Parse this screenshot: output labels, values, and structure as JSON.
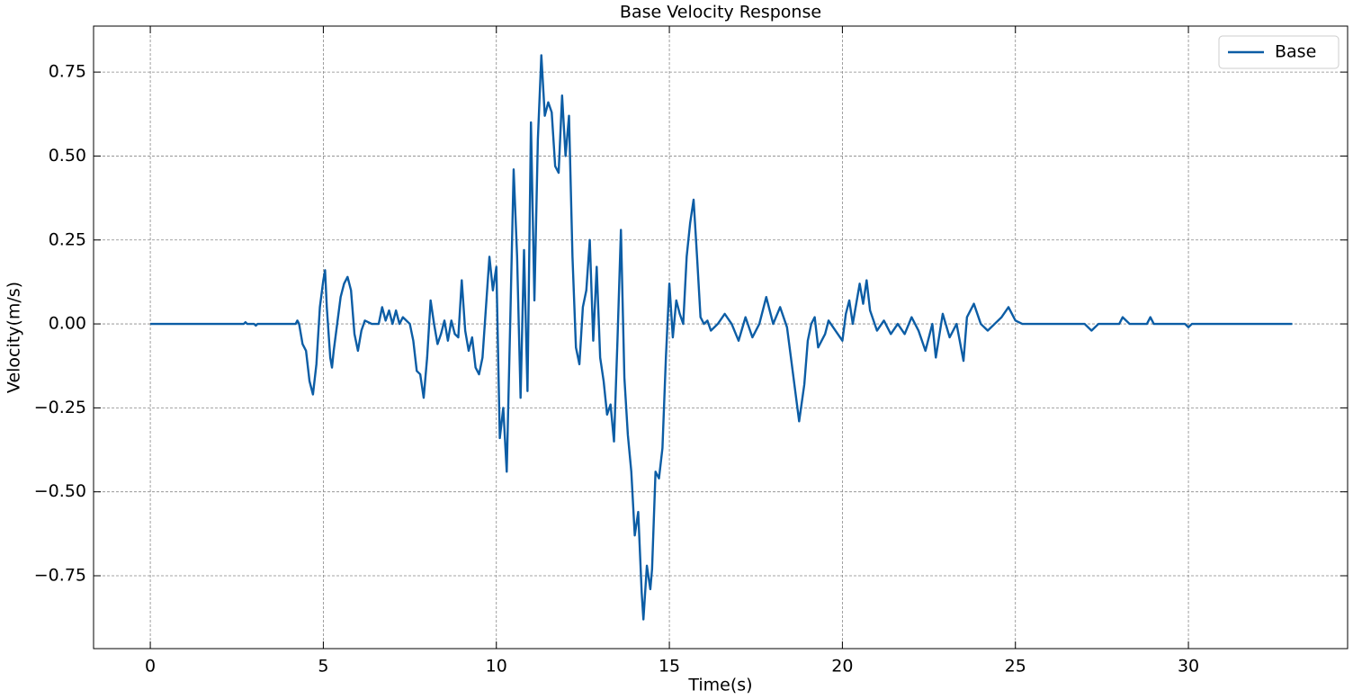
{
  "chart_data": {
    "type": "line",
    "title": "Base Velocity Response",
    "x_label": "Time(s)",
    "y_label": "Velocity(m/s)",
    "xlim": [
      -1.64,
      34.6
    ],
    "ylim": [
      -0.967,
      0.887
    ],
    "xticks": [
      0,
      5,
      10,
      15,
      20,
      25,
      30
    ],
    "yticks": [
      {
        "value": -0.75,
        "label": "−0.75"
      },
      {
        "value": -0.5,
        "label": "−0.50"
      },
      {
        "value": -0.25,
        "label": "−0.25"
      },
      {
        "value": 0,
        "label": "0.00"
      },
      0.25,
      {
        "value": 0.5,
        "label": "0.50"
      },
      0.75
    ],
    "grid": true,
    "legend": "upper right",
    "x": [
      0,
      2.7,
      2.75,
      2.8,
      3.0,
      3.05,
      3.1,
      4.2,
      4.25,
      4.3,
      4.4,
      4.5,
      4.6,
      4.7,
      4.8,
      4.9,
      5.0,
      5.05,
      5.1,
      5.2,
      5.25,
      5.3,
      5.4,
      5.5,
      5.6,
      5.7,
      5.8,
      5.9,
      6.0,
      6.1,
      6.2,
      6.4,
      6.6,
      6.7,
      6.8,
      6.9,
      7.0,
      7.1,
      7.2,
      7.3,
      7.5,
      7.6,
      7.7,
      7.8,
      7.9,
      8.0,
      8.1,
      8.2,
      8.3,
      8.4,
      8.5,
      8.6,
      8.7,
      8.8,
      8.9,
      9.0,
      9.1,
      9.2,
      9.3,
      9.4,
      9.5,
      9.6,
      9.7,
      9.8,
      9.9,
      10.0,
      10.1,
      10.2,
      10.3,
      10.4,
      10.5,
      10.6,
      10.7,
      10.8,
      10.9,
      11.0,
      11.1,
      11.2,
      11.3,
      11.4,
      11.5,
      11.6,
      11.7,
      11.8,
      11.9,
      12.0,
      12.1,
      12.2,
      12.3,
      12.4,
      12.5,
      12.6,
      12.7,
      12.8,
      12.9,
      13.0,
      13.1,
      13.2,
      13.3,
      13.4,
      13.5,
      13.6,
      13.7,
      13.8,
      13.9,
      14.0,
      14.1,
      14.2,
      14.25,
      14.35,
      14.45,
      14.5,
      14.6,
      14.7,
      14.8,
      14.9,
      15.0,
      15.1,
      15.2,
      15.3,
      15.4,
      15.5,
      15.6,
      15.7,
      15.8,
      15.9,
      16.0,
      16.1,
      16.2,
      16.4,
      16.6,
      16.8,
      17.0,
      17.2,
      17.4,
      17.6,
      17.8,
      18.0,
      18.2,
      18.4,
      18.6,
      18.75,
      18.9,
      19.0,
      19.1,
      19.2,
      19.3,
      19.5,
      19.6,
      19.8,
      20.0,
      20.1,
      20.2,
      20.3,
      20.5,
      20.6,
      20.7,
      20.8,
      21.0,
      21.2,
      21.4,
      21.6,
      21.8,
      22.0,
      22.2,
      22.4,
      22.6,
      22.7,
      22.9,
      23.1,
      23.3,
      23.5,
      23.6,
      23.8,
      24.0,
      24.2,
      24.4,
      24.6,
      24.8,
      25.0,
      25.2,
      27.0,
      27.2,
      27.4,
      28.0,
      28.1,
      28.3,
      28.8,
      28.9,
      29.0,
      29.9,
      30.0,
      30.1,
      33.0
    ],
    "series": [
      {
        "name": "Base",
        "color": "#0C5DA5",
        "values": [
          0,
          0,
          0.005,
          0,
          0,
          -0.005,
          0,
          0,
          0.01,
          0,
          -0.06,
          -0.08,
          -0.17,
          -0.21,
          -0.12,
          0.05,
          0.13,
          0.16,
          0.05,
          -0.1,
          -0.13,
          -0.08,
          0.0,
          0.08,
          0.12,
          0.14,
          0.1,
          -0.03,
          -0.08,
          -0.02,
          0.01,
          0.0,
          0.0,
          0.05,
          0.01,
          0.04,
          0.0,
          0.04,
          0.0,
          0.02,
          0.0,
          -0.05,
          -0.14,
          -0.15,
          -0.22,
          -0.1,
          0.07,
          0.0,
          -0.06,
          -0.03,
          0.01,
          -0.05,
          0.01,
          -0.03,
          -0.04,
          0.13,
          -0.02,
          -0.08,
          -0.04,
          -0.13,
          -0.15,
          -0.1,
          0.05,
          0.2,
          0.1,
          0.17,
          -0.34,
          -0.25,
          -0.44,
          0.0,
          0.46,
          0.2,
          -0.22,
          0.22,
          -0.2,
          0.6,
          0.07,
          0.55,
          0.8,
          0.62,
          0.66,
          0.63,
          0.47,
          0.45,
          0.68,
          0.5,
          0.62,
          0.2,
          -0.07,
          -0.12,
          0.05,
          0.1,
          0.25,
          -0.05,
          0.17,
          -0.1,
          -0.17,
          -0.27,
          -0.24,
          -0.35,
          -0.05,
          0.28,
          -0.16,
          -0.33,
          -0.44,
          -0.63,
          -0.56,
          -0.8,
          -0.88,
          -0.72,
          -0.79,
          -0.73,
          -0.44,
          -0.46,
          -0.37,
          -0.1,
          0.12,
          -0.04,
          0.07,
          0.03,
          0.0,
          0.2,
          0.3,
          0.37,
          0.2,
          0.02,
          0.0,
          0.01,
          -0.02,
          0.0,
          0.03,
          0.0,
          -0.05,
          0.02,
          -0.04,
          0.0,
          0.08,
          0.0,
          0.05,
          -0.01,
          -0.17,
          -0.29,
          -0.18,
          -0.05,
          0.0,
          0.02,
          -0.07,
          -0.03,
          0.01,
          -0.02,
          -0.05,
          0.03,
          0.07,
          0.0,
          0.12,
          0.06,
          0.13,
          0.04,
          -0.02,
          0.01,
          -0.03,
          0.0,
          -0.03,
          0.02,
          -0.02,
          -0.08,
          0.0,
          -0.1,
          0.03,
          -0.04,
          0.0,
          -0.11,
          0.02,
          0.06,
          0.0,
          -0.02,
          0.0,
          0.02,
          0.05,
          0.01,
          0.0,
          0.0,
          -0.02,
          0.0,
          0.0,
          0.02,
          0.0,
          0.0,
          0.02,
          0.0,
          0.0,
          -0.01,
          0.0,
          0.0
        ]
      }
    ]
  }
}
